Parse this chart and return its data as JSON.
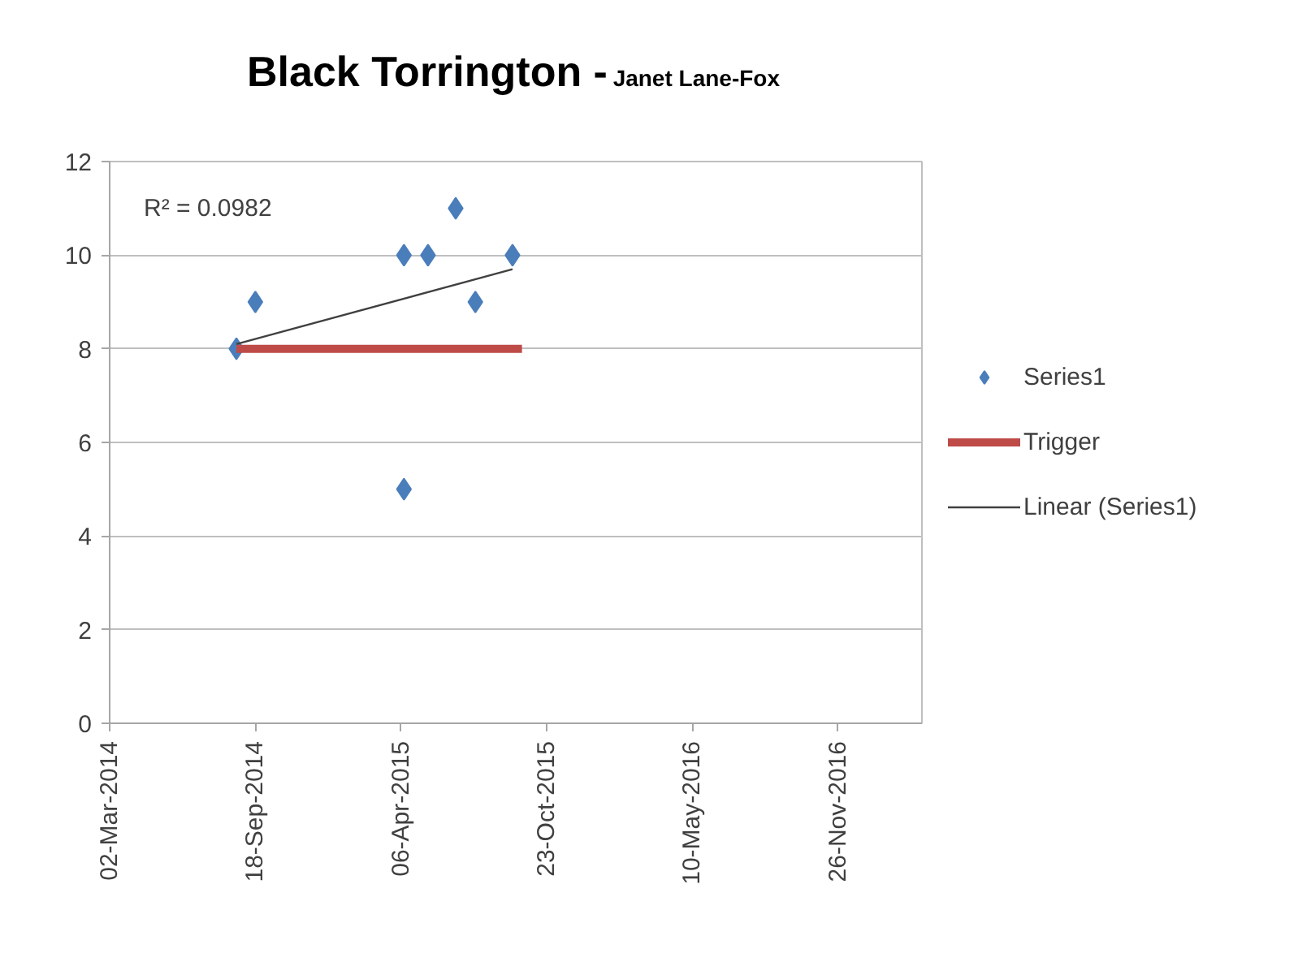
{
  "chart_data": {
    "type": "scatter",
    "title": "Black Torrington -",
    "subtitle": "Janet Lane-Fox",
    "annotations": [
      "R² = 0.0982"
    ],
    "series": [
      {
        "name": "Series1",
        "color": "#4a7ebb",
        "marker": "diamond",
        "x": [
          "2014-08-23",
          "2014-09-18",
          "2015-04-10",
          "2015-04-10",
          "2015-05-13",
          "2015-06-20",
          "2015-07-17",
          "2015-09-06"
        ],
        "values": [
          8,
          9,
          10,
          5,
          10,
          11,
          9,
          10
        ]
      },
      {
        "name": "Trigger",
        "type": "line",
        "color": "#be4b48",
        "x": [
          "2014-08-23",
          "2015-09-19"
        ],
        "values": [
          8,
          8
        ]
      },
      {
        "name": "Linear (Series1)",
        "type": "line",
        "color": "#404040",
        "x": [
          "2014-08-23",
          "2015-09-06"
        ],
        "values": [
          8.1,
          9.7
        ]
      }
    ],
    "xlim": [
      "2014-03-02",
      "2017-03-21"
    ],
    "xticks": [
      {
        "value": "2014-03-02",
        "label": "02-Mar-2014"
      },
      {
        "value": "2014-09-18",
        "label": "18-Sep-2014"
      },
      {
        "value": "2015-04-06",
        "label": "06-Apr-2015"
      },
      {
        "value": "2015-10-23",
        "label": "23-Oct-2015"
      },
      {
        "value": "2016-05-10",
        "label": "10-May-2016"
      },
      {
        "value": "2016-11-26",
        "label": "26-Nov-2016"
      }
    ],
    "ylim": [
      0,
      12
    ],
    "yticks": [
      0,
      2,
      4,
      6,
      8,
      10,
      12
    ],
    "grid": "y",
    "legend": "right"
  }
}
